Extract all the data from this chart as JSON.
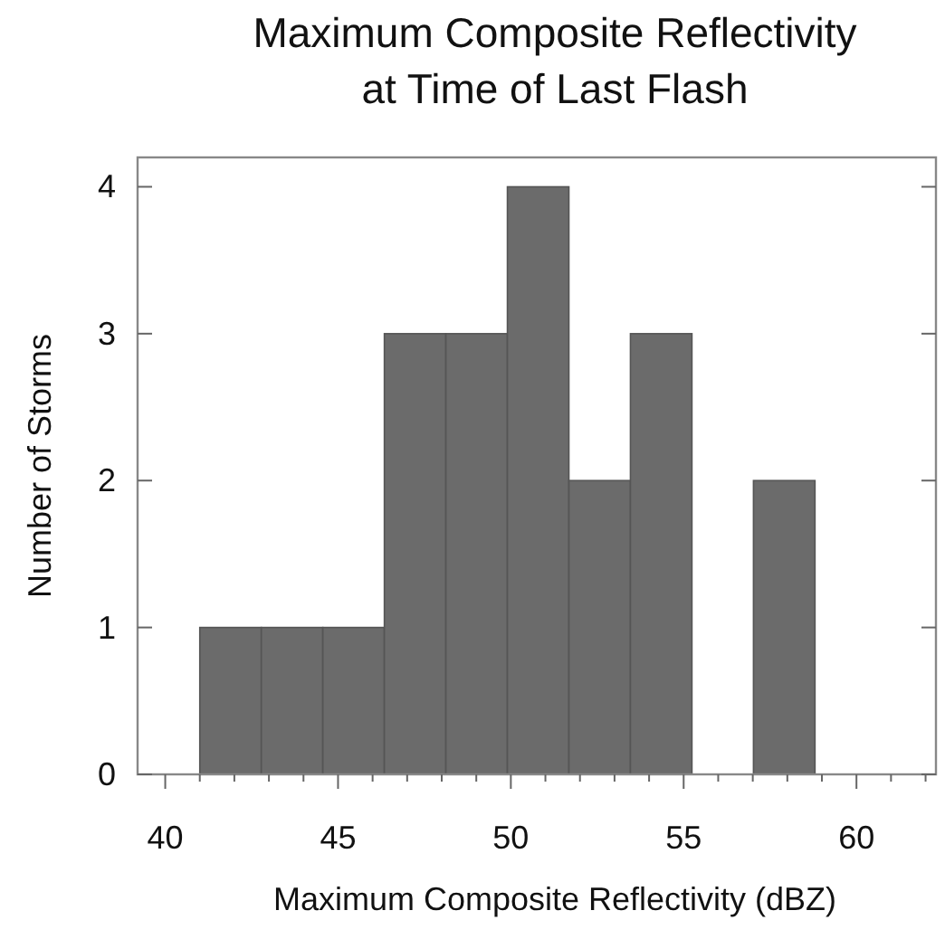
{
  "chart_data": {
    "type": "histogram",
    "title": "Maximum Composite Reflectivity\nat Time of Last Flash",
    "xlabel": "Maximum Composite Reflectivity (dBZ)",
    "ylabel": "Number of Storms",
    "bins": [
      41,
      42.78,
      44.56,
      46.34,
      48.12,
      49.9,
      51.68,
      53.46,
      55.24,
      57.02,
      58.8
    ],
    "values": [
      1,
      1,
      1,
      3,
      3,
      4,
      2,
      3,
      0,
      2
    ],
    "color": "#6b6b6b",
    "xlim": [
      39.2,
      62.3
    ],
    "ylim": [
      0,
      4.2
    ],
    "xticks": [
      40,
      {
        "value": 41,
        "label": null
      },
      {
        "value": 42,
        "label": null
      },
      {
        "value": 43,
        "label": null
      },
      {
        "value": 44,
        "label": null
      },
      45,
      {
        "value": 46,
        "label": null
      },
      {
        "value": 47,
        "label": null
      },
      {
        "value": 48,
        "label": null
      },
      {
        "value": 49,
        "label": null
      },
      50,
      {
        "value": 51,
        "label": null
      },
      {
        "value": 52,
        "label": null
      },
      {
        "value": 53,
        "label": null
      },
      {
        "value": 54,
        "label": null
      },
      55,
      {
        "value": 56,
        "label": null
      },
      {
        "value": 57,
        "label": null
      },
      {
        "value": 58,
        "label": null
      },
      {
        "value": 59,
        "label": null
      },
      60,
      {
        "value": 61,
        "label": null
      },
      {
        "value": 62,
        "label": null
      }
    ],
    "yticks": [
      0,
      1,
      2,
      3,
      4
    ],
    "grid": false
  }
}
